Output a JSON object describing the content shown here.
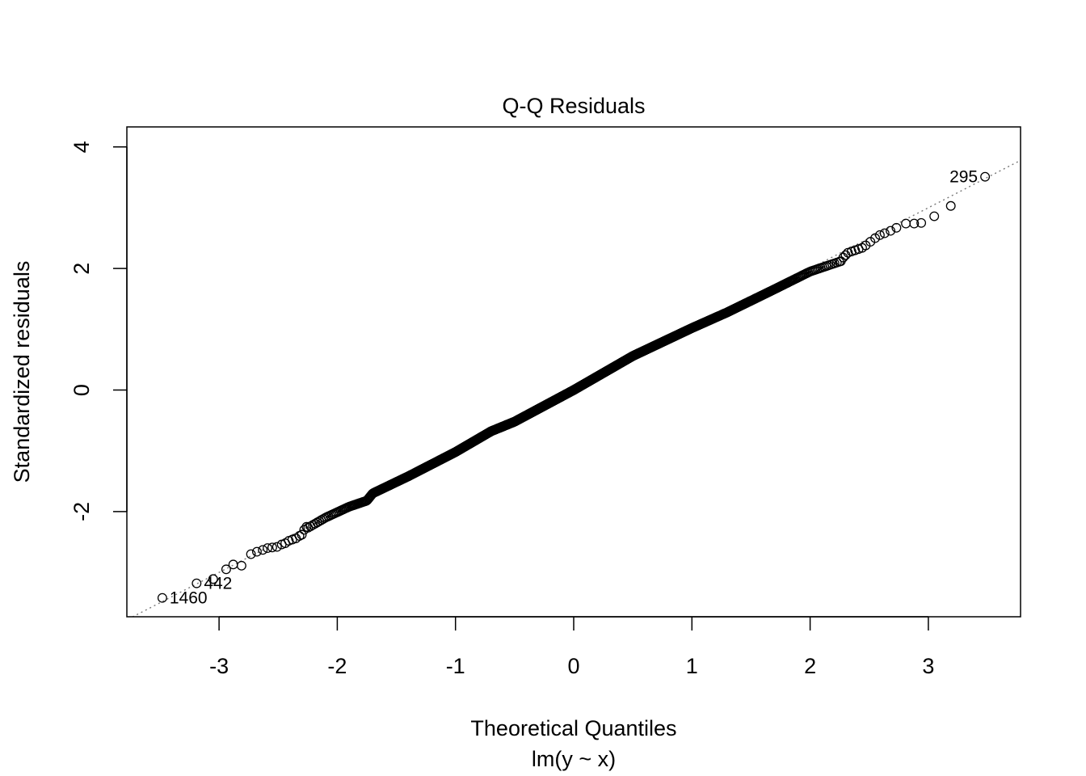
{
  "chart_data": {
    "type": "scatter",
    "title": "Q-Q Residuals",
    "xlabel": "Theoretical Quantiles",
    "subtitle": "lm(y ~ x)",
    "ylabel": "Standardized residuals",
    "xlim": [
      -3.78,
      3.78
    ],
    "ylim": [
      -3.73,
      4.33
    ],
    "x_ticks": [
      -3,
      -2,
      -1,
      0,
      1,
      2,
      3
    ],
    "y_ticks": [
      -2,
      0,
      2,
      4
    ],
    "x_tick_labels": [
      "-3",
      "-2",
      "-1",
      "0",
      "1",
      "2",
      "3"
    ],
    "y_tick_labels": [
      "-2",
      "0",
      "2",
      "4"
    ],
    "grid": false,
    "legend": "none",
    "reference_line": {
      "style": "dotted",
      "color": "#777777",
      "slope": 1.0,
      "intercept": 0.0
    },
    "labeled_points": [
      {
        "label": "295",
        "x": 3.48,
        "y": 3.51
      },
      {
        "label": "442",
        "x": -3.19,
        "y": -3.18
      },
      {
        "label": "1460",
        "x": -3.48,
        "y": -3.42
      }
    ],
    "tail_points": {
      "x": [
        -3.48,
        -3.19,
        -3.05,
        -2.94,
        -2.88,
        -2.81,
        -2.73,
        -2.68,
        -2.63,
        -2.59,
        -2.55,
        -2.51,
        -2.47,
        -2.44,
        -2.41,
        -2.38,
        -2.35,
        -2.32,
        -2.3,
        -2.28,
        -2.26,
        2.26,
        2.28,
        2.3,
        2.32,
        2.35,
        2.38,
        2.41,
        2.44,
        2.47,
        2.51,
        2.55,
        2.59,
        2.63,
        2.68,
        2.73,
        2.81,
        2.88,
        2.94,
        3.05,
        3.19,
        3.48
      ],
      "y": [
        -3.42,
        -3.18,
        -3.11,
        -2.95,
        -2.87,
        -2.89,
        -2.7,
        -2.66,
        -2.63,
        -2.6,
        -2.59,
        -2.58,
        -2.54,
        -2.52,
        -2.48,
        -2.46,
        -2.44,
        -2.4,
        -2.38,
        -2.3,
        -2.25,
        2.12,
        2.18,
        2.22,
        2.26,
        2.28,
        2.3,
        2.32,
        2.34,
        2.38,
        2.44,
        2.5,
        2.55,
        2.58,
        2.62,
        2.67,
        2.74,
        2.74,
        2.75,
        2.86,
        3.03,
        3.51
      ]
    },
    "n_points": 1500,
    "body_residual_trend_knots": {
      "x": [
        -2.26,
        -2.1,
        -1.9,
        -1.75,
        -1.7,
        -1.4,
        -1.0,
        -0.7,
        -0.5,
        0.0,
        0.5,
        1.0,
        1.3,
        1.7,
        2.0,
        2.26
      ],
      "y": [
        -2.28,
        -2.1,
        -1.92,
        -1.82,
        -1.7,
        -1.42,
        -1.02,
        -0.68,
        -0.52,
        0.0,
        0.56,
        1.02,
        1.28,
        1.66,
        1.95,
        2.12
      ]
    }
  }
}
